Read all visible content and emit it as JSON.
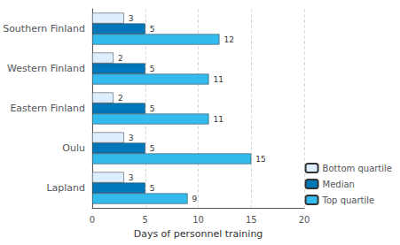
{
  "chart_data": {
    "type": "bar",
    "orientation": "horizontal",
    "categories": [
      "Lapland",
      "Oulu",
      "Eastern Finland",
      "Western Finland",
      "Southern Finland"
    ],
    "series": [
      {
        "name": "Bottom quartile",
        "color": "#ddeeff",
        "values": [
          3,
          3,
          2,
          2,
          3
        ]
      },
      {
        "name": "Median",
        "color": "#0077bb",
        "values": [
          5,
          5,
          5,
          5,
          5
        ]
      },
      {
        "name": "Top quartile",
        "color": "#33bbee",
        "values": [
          9,
          15,
          11,
          11,
          12
        ]
      }
    ],
    "xlabel": "Days of personnel training",
    "xlim": [
      0,
      20
    ],
    "xticks": [
      0,
      5,
      10,
      15,
      20
    ],
    "grid": true,
    "legend": "lower right",
    "data_labels": true
  }
}
